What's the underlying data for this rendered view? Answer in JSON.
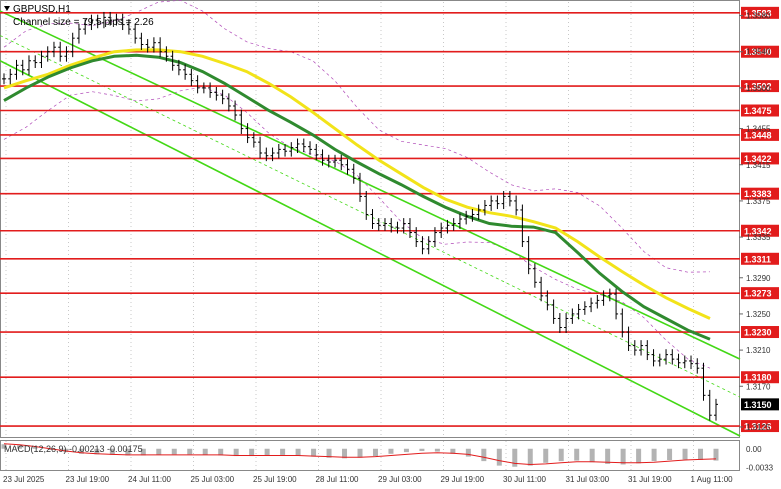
{
  "chart_data": {
    "type": "line",
    "title": "GBPUSD,H1",
    "subtitle": "Channel size = 79.5 pips = 2.26",
    "price_range": [
      1.3115,
      1.3595
    ],
    "levels": [
      1.3583,
      1.354,
      1.3502,
      1.3475,
      1.3448,
      1.3422,
      1.3383,
      1.3342,
      1.3311,
      1.3273,
      1.323,
      1.318,
      1.3126
    ],
    "current_price": 1.315,
    "y_ticks": [
      1.358,
      1.354,
      1.35,
      1.3455,
      1.3415,
      1.3375,
      1.3335,
      1.329,
      1.325,
      1.321,
      1.317,
      1.3125
    ],
    "x_labels": [
      "23 Jul 2025",
      "23 Jul 19:00",
      "24 Jul 11:00",
      "25 Jul 03:00",
      "25 Jul 19:00",
      "28 Jul 11:00",
      "29 Jul 03:00",
      "29 Jul 19:00",
      "30 Jul 11:00",
      "31 Jul 03:00",
      "31 Jul 19:00",
      "1 Aug 11:00"
    ],
    "price_series": [
      1.351,
      1.3515,
      1.3525,
      1.352,
      1.353,
      1.3528,
      1.3535,
      1.354,
      1.3545,
      1.3535,
      1.354,
      1.3555,
      1.3565,
      1.357,
      1.3575,
      1.3572,
      1.3578,
      1.3575,
      1.3576,
      1.357,
      1.3565,
      1.3555,
      1.3548,
      1.3545,
      1.355,
      1.354,
      1.3535,
      1.3525,
      1.352,
      1.3515,
      1.3508,
      1.35,
      1.35,
      1.3495,
      1.3492,
      1.3488,
      1.348,
      1.347,
      1.3455,
      1.3445,
      1.344,
      1.3428,
      1.3425,
      1.3428,
      1.3432,
      1.343,
      1.3434,
      1.3438,
      1.3435,
      1.3432,
      1.3426,
      1.342,
      1.3418,
      1.342,
      1.3415,
      1.341,
      1.34,
      1.338,
      1.336,
      1.335,
      1.3348,
      1.335,
      1.3346,
      1.3345,
      1.335,
      1.334,
      1.333,
      1.3322,
      1.333,
      1.334,
      1.3345,
      1.3348,
      1.335,
      1.3355,
      1.3358,
      1.336,
      1.3365,
      1.337,
      1.3375,
      1.3372,
      1.338,
      1.3375,
      1.3365,
      1.333,
      1.33,
      1.3285,
      1.327,
      1.326,
      1.3245,
      1.3235,
      1.3245,
      1.325,
      1.3255,
      1.3258,
      1.3262,
      1.3265,
      1.327,
      1.3272,
      1.325,
      1.323,
      1.3215,
      1.321,
      1.3215,
      1.3205,
      1.3198,
      1.32,
      1.3205,
      1.32,
      1.3196,
      1.3198,
      1.3195,
      1.319,
      1.316,
      1.3138,
      1.315
    ],
    "ma_fast": [
      1.3486,
      1.35,
      1.3512,
      1.3522,
      1.353,
      1.3535,
      1.3536,
      1.3534,
      1.3528,
      1.3518,
      1.3505,
      1.349,
      1.3475,
      1.3462,
      1.3448,
      1.3432,
      1.3418,
      1.3405,
      1.3393,
      1.338,
      1.3368,
      1.3358,
      1.335,
      1.3347,
      1.3346,
      1.334,
      1.3318,
      1.3295,
      1.3275,
      1.3258,
      1.3245,
      1.3232,
      1.3222
    ],
    "ma_slow": [
      1.35,
      1.3508,
      1.3515,
      1.3525,
      1.3533,
      1.354,
      1.3542,
      1.3542,
      1.354,
      1.3535,
      1.3527,
      1.3518,
      1.3505,
      1.349,
      1.3473,
      1.3455,
      1.3437,
      1.342,
      1.3405,
      1.339,
      1.3377,
      1.3368,
      1.3362,
      1.3358,
      1.3352,
      1.3345,
      1.333,
      1.3313,
      1.3297,
      1.3282,
      1.3268,
      1.3256,
      1.3245
    ],
    "macd": {
      "label": "MACD(12,26,9) -0.00213 -0.00175",
      "y_ticks": [
        "0.00",
        "-0.0033"
      ],
      "histogram": [
        0.0008,
        0.0006,
        0.0003,
        -0.0002,
        -0.0006,
        -0.0009,
        -0.001,
        -0.0011,
        -0.0012,
        -0.0012,
        -0.0011,
        -0.001,
        -0.001,
        -0.0011,
        -0.0012,
        -0.0013,
        -0.0013,
        -0.0012,
        -0.0011,
        -0.0012,
        -0.0014,
        -0.0016,
        -0.0017,
        -0.0016,
        -0.0013,
        -0.0009,
        -0.0006,
        -0.0004,
        -0.0005,
        -0.0009,
        -0.0014,
        -0.0022,
        -0.003,
        -0.0032,
        -0.003,
        -0.0025,
        -0.0022,
        -0.0021,
        -0.0024,
        -0.0027,
        -0.0028,
        -0.0026,
        -0.0022,
        -0.002,
        -0.0019,
        -0.002,
        -0.0021
      ],
      "signal": [
        0.0009,
        0.0007,
        0.0004,
        0.0,
        -0.0004,
        -0.0007,
        -0.0009,
        -0.001,
        -0.0011,
        -0.0011,
        -0.0011,
        -0.0011,
        -0.0011,
        -0.0011,
        -0.0011,
        -0.0012,
        -0.0012,
        -0.0012,
        -0.0012,
        -0.0012,
        -0.0013,
        -0.0014,
        -0.0015,
        -0.0015,
        -0.0014,
        -0.0012,
        -0.001,
        -0.0008,
        -0.0007,
        -0.0008,
        -0.001,
        -0.0015,
        -0.0021,
        -0.0026,
        -0.0028,
        -0.0027,
        -0.0025,
        -0.0023,
        -0.0023,
        -0.0024,
        -0.0025,
        -0.0025,
        -0.0024,
        -0.0022,
        -0.002,
        -0.0019,
        -0.0018
      ]
    }
  },
  "colors": {
    "level_line": "#e21c1c",
    "level_badge": "#e21c1c",
    "channel": "#43d815",
    "ma_fast": "#2f8a2f",
    "ma_slow": "#f2e319",
    "price": "#000000",
    "macd_hist": "#b3b3b3",
    "macd_signal": "#e21c1c",
    "envelope": "#b04ab8",
    "current_badge": "#000000"
  }
}
